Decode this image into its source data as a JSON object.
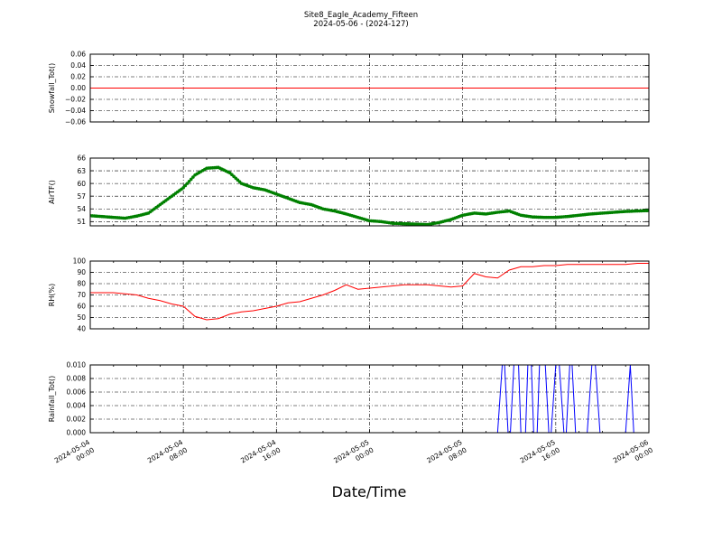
{
  "title_line1": "Site8_Eagle_Academy_Fifteen",
  "title_line2": "2024-05-06 - (2024-127)",
  "xlabel": "Date/Time",
  "x_ticks": [
    {
      "t": 0,
      "d": "2024-05-04",
      "h": "00:00"
    },
    {
      "t": 8,
      "d": "2024-05-04",
      "h": "08:00"
    },
    {
      "t": 16,
      "d": "2024-05-04",
      "h": "16:00"
    },
    {
      "t": 24,
      "d": "2024-05-05",
      "h": "00:00"
    },
    {
      "t": 32,
      "d": "2024-05-05",
      "h": "08:00"
    },
    {
      "t": 40,
      "d": "2024-05-05",
      "h": "16:00"
    },
    {
      "t": 48,
      "d": "2024-05-06",
      "h": "00:00"
    }
  ],
  "chart_data": [
    {
      "type": "line",
      "ylabel": "Snowfall_Tot()",
      "ylim": [
        -0.06,
        0.06
      ],
      "yticks": [
        -0.06,
        -0.04,
        -0.02,
        0.0,
        0.02,
        0.04,
        0.06
      ],
      "ytick_labels": [
        "−0.06",
        "−0.04",
        "−0.02",
        "0.00",
        "0.02",
        "0.04",
        "0.06"
      ],
      "color": "#ff0000",
      "marker": false,
      "x_hours": [
        0,
        48
      ],
      "y": [
        0.0,
        0.0
      ]
    },
    {
      "type": "line",
      "ylabel": "AirTF()",
      "ylim": [
        50,
        66
      ],
      "yticks": [
        51,
        54,
        57,
        60,
        63,
        66
      ],
      "ytick_labels": [
        "51",
        "54",
        "57",
        "60",
        "63",
        "66"
      ],
      "color": "#008000",
      "marker": true,
      "x_hours": [
        0,
        1,
        2,
        3,
        4,
        5,
        6,
        7,
        8,
        9,
        10,
        11,
        12,
        13,
        14,
        15,
        16,
        17,
        18,
        19,
        20,
        21,
        22,
        23,
        24,
        25,
        26,
        27,
        28,
        29,
        30,
        31,
        32,
        33,
        34,
        35,
        36,
        37,
        38,
        39,
        40,
        41,
        42,
        43,
        44,
        45,
        46,
        47,
        48
      ],
      "y": [
        52.4,
        52.2,
        52.0,
        51.8,
        52.3,
        53.0,
        55.0,
        57.0,
        59.0,
        62.0,
        63.6,
        63.8,
        62.5,
        60.0,
        59.0,
        58.5,
        57.5,
        56.5,
        55.5,
        55.0,
        54.0,
        53.5,
        52.8,
        52.0,
        51.2,
        51.0,
        50.6,
        50.5,
        50.4,
        50.3,
        50.8,
        51.5,
        52.5,
        53.0,
        52.8,
        53.2,
        53.5,
        52.5,
        52.1,
        52.0,
        52.0,
        52.2,
        52.5,
        52.8,
        53.0,
        53.2,
        53.4,
        53.5,
        53.6
      ]
    },
    {
      "type": "line",
      "ylabel": "RH(%)",
      "ylim": [
        40,
        100
      ],
      "yticks": [
        40,
        50,
        60,
        70,
        80,
        90,
        100
      ],
      "ytick_labels": [
        "40",
        "50",
        "60",
        "70",
        "80",
        "90",
        "100"
      ],
      "color": "#ff0000",
      "marker": false,
      "x_hours": [
        0,
        1,
        2,
        3,
        4,
        5,
        6,
        7,
        8,
        9,
        10,
        11,
        12,
        13,
        14,
        15,
        16,
        17,
        18,
        19,
        20,
        21,
        22,
        23,
        24,
        25,
        26,
        27,
        28,
        29,
        30,
        31,
        32,
        33,
        34,
        35,
        36,
        37,
        38,
        39,
        40,
        41,
        42,
        43,
        44,
        45,
        46,
        47,
        48
      ],
      "y": [
        72,
        72,
        72,
        71,
        70,
        67,
        65,
        62,
        60,
        51,
        48,
        49,
        53,
        55,
        56,
        58,
        60,
        63,
        64,
        67,
        70,
        74,
        79,
        75,
        76,
        77,
        78,
        79,
        79,
        79,
        78,
        77,
        78,
        89,
        86,
        85,
        92,
        95,
        95,
        96,
        96,
        97,
        97,
        97,
        97,
        97,
        97,
        98,
        98
      ]
    },
    {
      "type": "line",
      "ylabel": "Rainfall_Tot()",
      "ylim": [
        0,
        0.01
      ],
      "yticks": [
        0.0,
        0.002,
        0.004,
        0.006,
        0.008,
        0.01
      ],
      "ytick_labels": [
        "0.000",
        "0.002",
        "0.004",
        "0.006",
        "0.008",
        "0.010"
      ],
      "color": "#0000ff",
      "marker": false,
      "x_hours": [
        0,
        35.0,
        35.4,
        35.6,
        35.9,
        36.1,
        36.4,
        36.8,
        37.0,
        37.4,
        37.6,
        37.9,
        38.1,
        38.4,
        38.6,
        39.1,
        39.4,
        39.6,
        40.0,
        40.3,
        40.7,
        40.9,
        41.2,
        41.4,
        41.7,
        42.0,
        42.7,
        43.1,
        43.4,
        43.8,
        46.0,
        46.4,
        46.7,
        48.0
      ],
      "y": [
        0,
        0,
        0.01,
        0.01,
        0,
        0,
        0.01,
        0.01,
        0,
        0,
        0.01,
        0.01,
        0,
        0,
        0.01,
        0.01,
        0,
        0,
        0.01,
        0.01,
        0,
        0,
        0.01,
        0.01,
        0,
        0,
        0,
        0.01,
        0.01,
        0,
        0,
        0.01,
        0,
        0
      ]
    }
  ]
}
